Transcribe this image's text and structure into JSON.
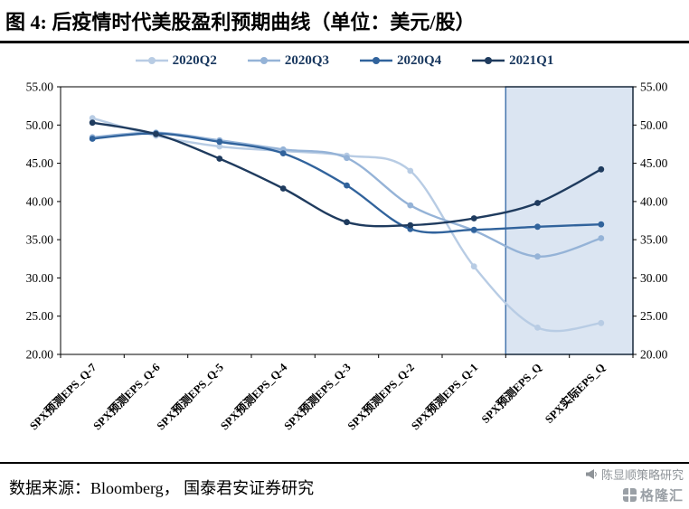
{
  "header": {
    "title": "图 4: 后疫情时代美股盈利预期曲线（单位：美元/股）"
  },
  "footer": {
    "source": "数据来源：Bloomberg， 国泰君安证券研究",
    "watermark_primary": "陈显顺策略研究",
    "watermark_logo": "格隆汇"
  },
  "chart_data": {
    "type": "line",
    "title": "后疫情时代美股盈利预期曲线",
    "unit_label": "美元/股",
    "categories": [
      "SPX预测EPS_Q-7",
      "SPX预测EPS_Q-6",
      "SPX预测EPS_Q-5",
      "SPX预测EPS_Q-4",
      "SPX预测EPS_Q-3",
      "SPX预测EPS_Q-2",
      "SPX预测EPS_Q-1",
      "SPX预测EPS_Q",
      "SPX实际EPS_Q"
    ],
    "series": [
      {
        "name": "2020Q2",
        "color": "#b8cce4",
        "values": [
          50.9,
          48.6,
          47.2,
          46.6,
          46.0,
          44.0,
          31.5,
          23.5,
          24.1
        ]
      },
      {
        "name": "2020Q3",
        "color": "#95b3d7",
        "values": [
          48.4,
          49.0,
          48.0,
          46.8,
          45.7,
          39.5,
          36.2,
          32.8,
          35.2
        ]
      },
      {
        "name": "2020Q4",
        "color": "#31639c",
        "values": [
          48.2,
          48.9,
          47.8,
          46.3,
          42.1,
          36.4,
          36.3,
          36.7,
          37.0
        ]
      },
      {
        "name": "2021Q1",
        "color": "#1f3b5e",
        "values": [
          50.3,
          48.8,
          45.6,
          41.7,
          37.3,
          36.9,
          37.8,
          39.8,
          44.2
        ]
      }
    ],
    "ylim": [
      20,
      55
    ],
    "ytick_step": 5,
    "ytick_labels": [
      "55.00",
      "50.00",
      "45.00",
      "40.00",
      "35.00",
      "30.00",
      "25.00",
      "20.00"
    ],
    "y_axis_sides": "both",
    "grid": false,
    "legend_position": "top",
    "highlight_region": {
      "from_category": "SPX预测EPS_Q",
      "fill": "#dbe5f2",
      "border": "#4576ad"
    }
  }
}
